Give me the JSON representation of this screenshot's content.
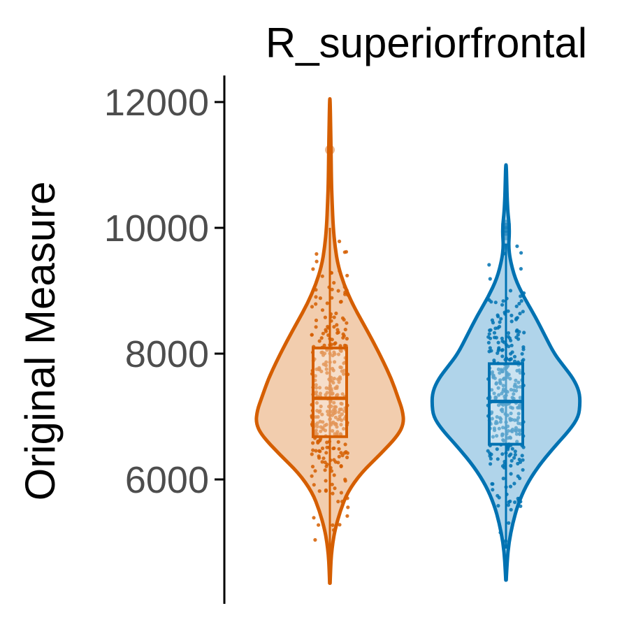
{
  "chart_data": {
    "type": "violin",
    "title": "R_superiorfrontal",
    "xlabel": "",
    "ylabel": "Original Measure",
    "y_ticks": [
      6000,
      8000,
      10000,
      12000
    ],
    "y_tick_labels": [
      "6000",
      "8000",
      "10000",
      "12000"
    ],
    "ylim": [
      4200,
      12400
    ],
    "grid": false,
    "legend": "none",
    "groups": [
      {
        "color": "#D55E00",
        "fill": "#F2CDAE",
        "min": 4350,
        "max": 12050,
        "median": 7290,
        "q1": 6680,
        "q3": 8090,
        "whisker_low": 4750,
        "whisker_high": 10000,
        "outliers": [
          11240
        ],
        "density": [
          [
            4350,
            0.003
          ],
          [
            4600,
            0.01
          ],
          [
            4800,
            0.02
          ],
          [
            5000,
            0.04
          ],
          [
            5200,
            0.07
          ],
          [
            5500,
            0.14
          ],
          [
            5800,
            0.24
          ],
          [
            6100,
            0.42
          ],
          [
            6400,
            0.68
          ],
          [
            6700,
            0.92
          ],
          [
            6900,
            1.0
          ],
          [
            7100,
            0.98
          ],
          [
            7300,
            0.92
          ],
          [
            7600,
            0.83
          ],
          [
            7900,
            0.71
          ],
          [
            8200,
            0.58
          ],
          [
            8500,
            0.44
          ],
          [
            8800,
            0.3
          ],
          [
            9100,
            0.19
          ],
          [
            9400,
            0.11
          ],
          [
            9700,
            0.07
          ],
          [
            10000,
            0.045
          ],
          [
            10400,
            0.03
          ],
          [
            10800,
            0.02
          ],
          [
            11200,
            0.016
          ],
          [
            11600,
            0.01
          ],
          [
            12050,
            0.003
          ]
        ]
      },
      {
        "color": "#0072B2",
        "fill": "#B0D4EA",
        "min": 4400,
        "max": 11000,
        "median": 7240,
        "q1": 6560,
        "q3": 7840,
        "whisker_low": 4900,
        "whisker_high": 9750,
        "outliers": [
          9880,
          9950,
          10000,
          10050
        ],
        "density": [
          [
            4400,
            0.003
          ],
          [
            4700,
            0.015
          ],
          [
            5000,
            0.04
          ],
          [
            5300,
            0.09
          ],
          [
            5600,
            0.16
          ],
          [
            5900,
            0.27
          ],
          [
            6200,
            0.43
          ],
          [
            6500,
            0.64
          ],
          [
            6800,
            0.87
          ],
          [
            7000,
            0.98
          ],
          [
            7200,
            1.0
          ],
          [
            7400,
            0.99
          ],
          [
            7600,
            0.91
          ],
          [
            7800,
            0.78
          ],
          [
            8000,
            0.65
          ],
          [
            8300,
            0.52
          ],
          [
            8600,
            0.39
          ],
          [
            8900,
            0.24
          ],
          [
            9200,
            0.12
          ],
          [
            9500,
            0.055
          ],
          [
            9700,
            0.035
          ],
          [
            9900,
            0.045
          ],
          [
            10050,
            0.042
          ],
          [
            10250,
            0.025
          ],
          [
            10500,
            0.014
          ],
          [
            10800,
            0.008
          ],
          [
            11000,
            0.003
          ]
        ]
      }
    ]
  }
}
